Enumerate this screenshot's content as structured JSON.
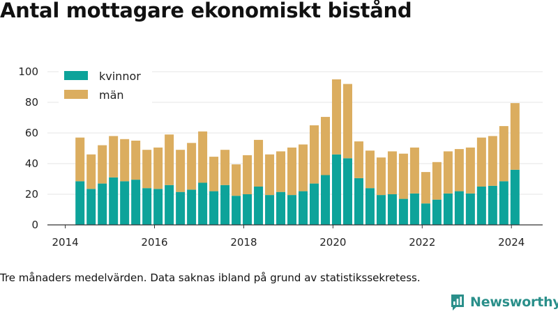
{
  "title": "Antal mottagare ekonomiskt bistånd",
  "caption": "Tre månaders medelvärden. Data saknas ibland på grund av statistikssekretess.",
  "brand": {
    "name": "Newsworthy",
    "icon": "newsworthy-logo-icon",
    "color": "#2a8f8a"
  },
  "chart_data": {
    "type": "bar",
    "stacked": true,
    "title": "",
    "xlabel": "",
    "ylabel": "",
    "ylim": [
      0,
      100
    ],
    "xlim": [
      2013.6,
      2024.7
    ],
    "yticks": [
      0,
      20,
      40,
      60,
      80,
      100
    ],
    "xticks": [
      2014,
      2016,
      2018,
      2020,
      2022,
      2024
    ],
    "grid": "horizontal",
    "legend": "top-left",
    "x": [
      2014.33,
      2014.58,
      2014.83,
      2015.08,
      2015.33,
      2015.58,
      2015.83,
      2016.08,
      2016.33,
      2016.58,
      2016.83,
      2017.08,
      2017.33,
      2017.58,
      2017.83,
      2018.08,
      2018.33,
      2018.58,
      2018.83,
      2019.08,
      2019.33,
      2019.58,
      2019.83,
      2020.08,
      2020.33,
      2020.58,
      2020.83,
      2021.08,
      2021.33,
      2021.58,
      2021.83,
      2022.08,
      2022.33,
      2022.58,
      2022.83,
      2023.08,
      2023.33,
      2023.58,
      2023.83,
      2024.08
    ],
    "series": [
      {
        "name": "kvinnor",
        "color": "#0da39a",
        "values": [
          28.5,
          23.5,
          27,
          31,
          28.5,
          29.5,
          24,
          23.5,
          26,
          21.5,
          23,
          27.5,
          22,
          26,
          19,
          20,
          25,
          19.5,
          21.5,
          19.5,
          22,
          27,
          32.5,
          46,
          43.5,
          30.5,
          24,
          19.5,
          20,
          17,
          20.5,
          14,
          16.5,
          20.5,
          22,
          20.5,
          25,
          25.5,
          28.5,
          36
        ]
      },
      {
        "name": "män",
        "color": "#dbad5f",
        "values": [
          28.5,
          22.5,
          25,
          27,
          27.5,
          25.5,
          25,
          27,
          33,
          27.5,
          30.5,
          33.5,
          22.5,
          23,
          20.5,
          25.5,
          30.5,
          26.5,
          26.5,
          31,
          30.5,
          38,
          38,
          49,
          48.5,
          24,
          24.5,
          24.5,
          28,
          29.5,
          30,
          20.5,
          24.5,
          27.5,
          27.5,
          30,
          32,
          32.5,
          36,
          43.5
        ]
      }
    ]
  }
}
